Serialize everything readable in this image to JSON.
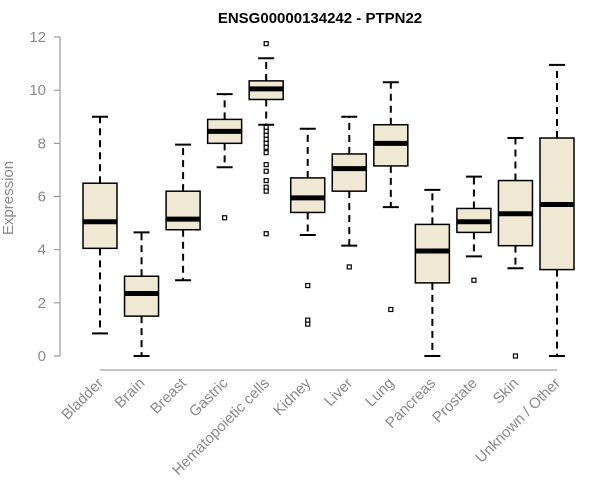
{
  "chart_data": {
    "type": "box",
    "title": "ENSG00000134242 - PTPN22",
    "xlabel": "",
    "ylabel": "Expression",
    "ylim": [
      0,
      12
    ],
    "yticks": [
      0,
      2,
      4,
      6,
      8,
      10,
      12
    ],
    "colors": {
      "box_fill": "#efe8d2",
      "box_stroke": "#000000",
      "axis": "#8a8a8a"
    },
    "categories": [
      "Bladder",
      "Brain",
      "Breast",
      "Gastric",
      "Hematopoietic cells",
      "Kidney",
      "Liver",
      "Lung",
      "Pancreas",
      "Prostate",
      "Skin",
      "Unknown / Other"
    ],
    "boxes": [
      {
        "category": "Bladder",
        "min": 0.85,
        "q1": 4.05,
        "median": 5.05,
        "q3": 6.5,
        "max": 9.0,
        "outliers": []
      },
      {
        "category": "Brain",
        "min": 0.0,
        "q1": 1.5,
        "median": 2.35,
        "q3": 3.0,
        "max": 4.65,
        "outliers": []
      },
      {
        "category": "Breast",
        "min": 2.85,
        "q1": 4.75,
        "median": 5.15,
        "q3": 6.2,
        "max": 7.95,
        "outliers": []
      },
      {
        "category": "Gastric",
        "min": 7.1,
        "q1": 8.0,
        "median": 8.45,
        "q3": 8.9,
        "max": 9.85,
        "outliers": [
          5.2
        ]
      },
      {
        "category": "Hematopoietic cells",
        "min": 8.7,
        "q1": 9.65,
        "median": 10.05,
        "q3": 10.35,
        "max": 11.2,
        "outliers": [
          11.75,
          8.6,
          8.45,
          8.3,
          8.15,
          8.0,
          7.85,
          7.65,
          7.2,
          6.95,
          6.6,
          6.35,
          6.2,
          4.6
        ]
      },
      {
        "category": "Kidney",
        "min": 4.55,
        "q1": 5.4,
        "median": 5.95,
        "q3": 6.7,
        "max": 8.55,
        "outliers": [
          2.65,
          1.35,
          1.2
        ]
      },
      {
        "category": "Liver",
        "min": 4.15,
        "q1": 6.2,
        "median": 7.05,
        "q3": 7.6,
        "max": 9.0,
        "outliers": [
          3.35
        ]
      },
      {
        "category": "Lung",
        "min": 5.6,
        "q1": 7.15,
        "median": 8.0,
        "q3": 8.7,
        "max": 10.3,
        "outliers": [
          1.75
        ]
      },
      {
        "category": "Pancreas",
        "min": 0.0,
        "q1": 2.75,
        "median": 3.95,
        "q3": 4.95,
        "max": 6.25,
        "outliers": []
      },
      {
        "category": "Prostate",
        "min": 3.75,
        "q1": 4.65,
        "median": 5.05,
        "q3": 5.55,
        "max": 6.75,
        "outliers": [
          2.85
        ]
      },
      {
        "category": "Skin",
        "min": 3.3,
        "q1": 4.15,
        "median": 5.35,
        "q3": 6.6,
        "max": 8.2,
        "outliers": [
          0.0
        ]
      },
      {
        "category": "Unknown / Other",
        "min": 0.0,
        "q1": 3.25,
        "median": 5.7,
        "q3": 8.2,
        "max": 10.95,
        "outliers": []
      }
    ]
  }
}
